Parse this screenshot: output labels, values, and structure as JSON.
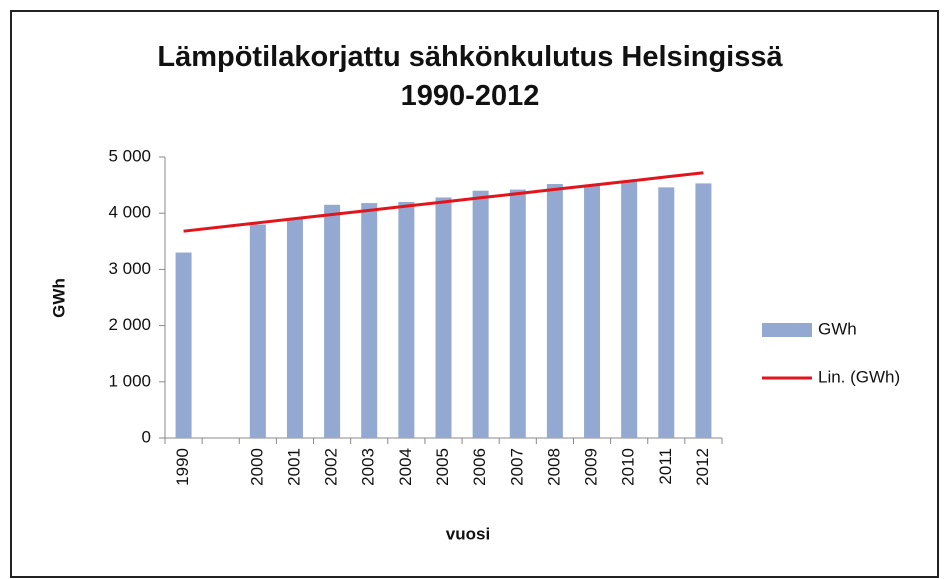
{
  "chart_data": {
    "type": "bar",
    "title": "Lämpötilakorjattu sähkönkulutus Helsingissä 1990-2012",
    "x_label": "vuosi",
    "y_label": "GWh",
    "categories": [
      "1990",
      null,
      "2000",
      "2001",
      "2002",
      "2003",
      "2004",
      "2005",
      "2006",
      "2007",
      "2008",
      "2009",
      "2010",
      "2011",
      "2012"
    ],
    "series": [
      {
        "name": "GWh",
        "type": "bar",
        "color": "#93a9d1",
        "values": [
          3300,
          null,
          3800,
          3900,
          4150,
          4180,
          4200,
          4280,
          4400,
          4420,
          4520,
          4500,
          4560,
          4460,
          4530
        ]
      },
      {
        "name": "Lin. (GWh)",
        "type": "line",
        "color": "#e0161c",
        "values": [
          3680,
          3754,
          3829,
          3903,
          3977,
          4051,
          4126,
          4200,
          4274,
          4349,
          4423,
          4497,
          4571,
          4646,
          4720
        ]
      }
    ],
    "ylim": [
      0,
      5000
    ],
    "yticks": [
      0,
      {
        "value": 1000,
        "label": "1 000"
      },
      {
        "value": 2000,
        "label": "2 000"
      },
      {
        "value": 3000,
        "label": "3 000"
      },
      {
        "value": 4000,
        "label": "4 000"
      },
      {
        "value": 5000,
        "label": "5 000"
      }
    ],
    "grid": false,
    "legend": "right"
  }
}
